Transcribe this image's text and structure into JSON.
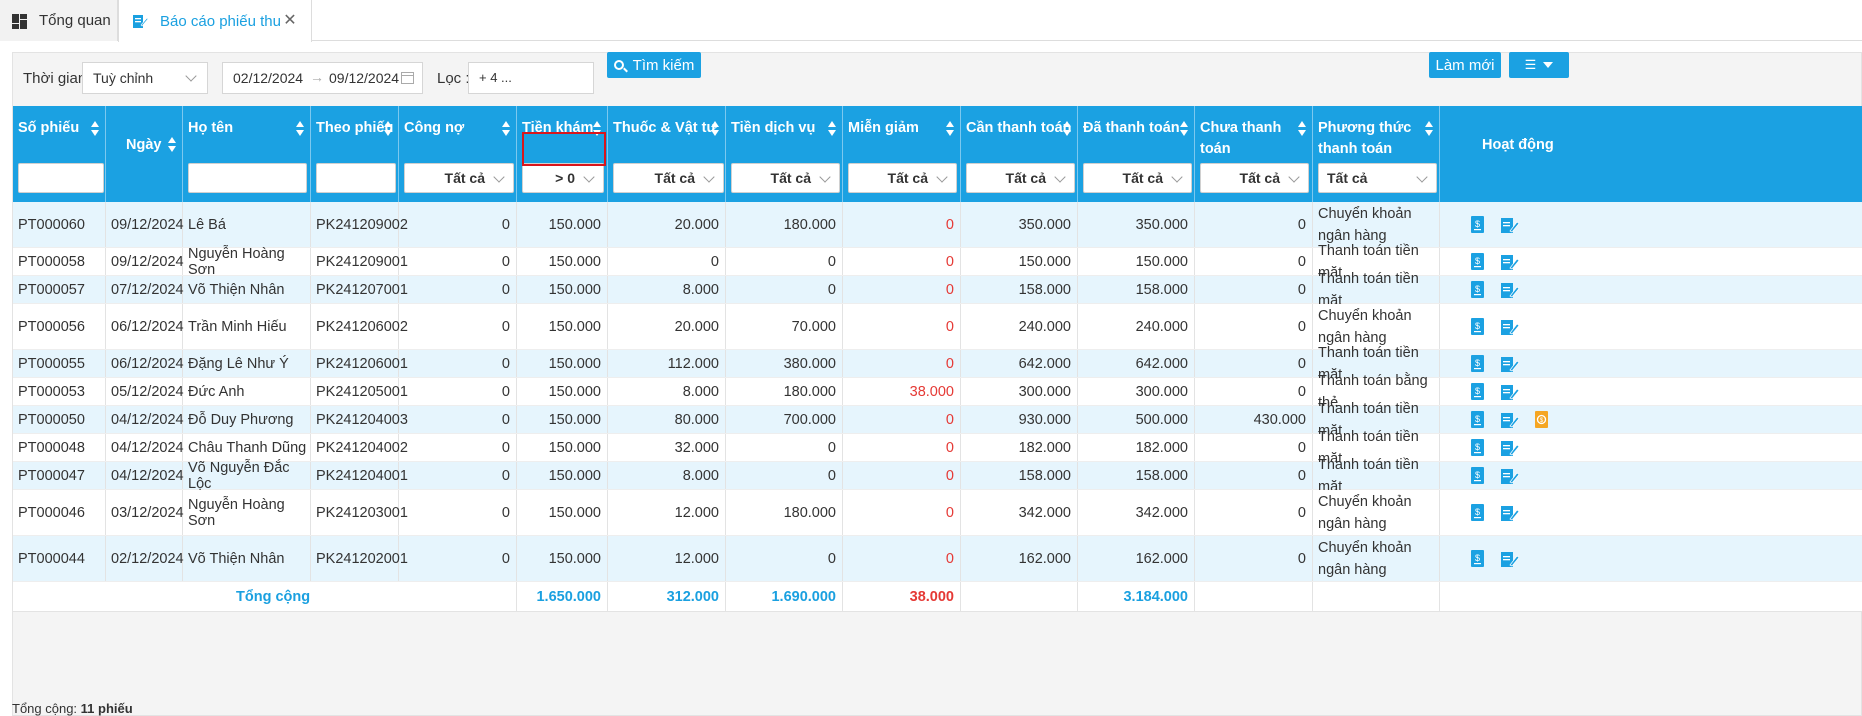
{
  "tabs": [
    {
      "label": "Tổng quan",
      "icon": "dashboard-icon"
    },
    {
      "label": "Báo cáo phiếu thu",
      "icon": "edit-document-icon"
    }
  ],
  "filters": {
    "time_label": "Thời gian :",
    "time_mode": "Tuỳ chỉnh",
    "date_from": "02/12/2024",
    "date_to": "09/12/2024",
    "filter_label": "Lọc :",
    "filter_chip": "+ 4 ...",
    "search_button": "Tìm kiếm",
    "refresh_button": "Làm mới"
  },
  "columns": [
    {
      "label": "Số phiếu",
      "filter": ""
    },
    {
      "label": "Ngày",
      "filter": null
    },
    {
      "label": "Họ tên",
      "filter": ""
    },
    {
      "label": "Theo phiếu",
      "filter": ""
    },
    {
      "label": "Công nợ",
      "filter": "Tất cả"
    },
    {
      "label": "Tiền khám",
      "filter": "> 0"
    },
    {
      "label": "Thuốc & Vật tư",
      "filter": "Tất cả"
    },
    {
      "label": "Tiền dịch vụ",
      "filter": "Tất cả"
    },
    {
      "label": "Miễn giảm",
      "filter": "Tất cả"
    },
    {
      "label": "Cần thanh toán",
      "filter": "Tất cả"
    },
    {
      "label": "Đã thanh toán",
      "filter": "Tất cả"
    },
    {
      "label": "Chưa thanh toán",
      "filter": "Tất cả"
    },
    {
      "label": "Phương thức thanh toán",
      "filter": "Tất cả"
    },
    {
      "label": "Hoạt động",
      "filter": null
    }
  ],
  "rows": [
    {
      "so": "PT000060",
      "ngay": "09/12/2024",
      "ten": "Lê Bá",
      "phieu": "PK241209002",
      "congno": "0",
      "kham": "150.000",
      "thuoc": "20.000",
      "dichvu": "180.000",
      "mien": "0",
      "can": "350.000",
      "da": "350.000",
      "chua": "0",
      "pt": "Chuyển khoản ngân hàng"
    },
    {
      "so": "PT000058",
      "ngay": "09/12/2024",
      "ten": "Nguyễn Hoàng Sơn",
      "phieu": "PK241209001",
      "congno": "0",
      "kham": "150.000",
      "thuoc": "0",
      "dichvu": "0",
      "mien": "0",
      "can": "150.000",
      "da": "150.000",
      "chua": "0",
      "pt": "Thanh toán tiền mặt"
    },
    {
      "so": "PT000057",
      "ngay": "07/12/2024",
      "ten": "Võ Thiện Nhân",
      "phieu": "PK241207001",
      "congno": "0",
      "kham": "150.000",
      "thuoc": "8.000",
      "dichvu": "0",
      "mien": "0",
      "can": "158.000",
      "da": "158.000",
      "chua": "0",
      "pt": "Thanh toán tiền mặt"
    },
    {
      "so": "PT000056",
      "ngay": "06/12/2024",
      "ten": "Trần Minh Hiếu",
      "phieu": "PK241206002",
      "congno": "0",
      "kham": "150.000",
      "thuoc": "20.000",
      "dichvu": "70.000",
      "mien": "0",
      "can": "240.000",
      "da": "240.000",
      "chua": "0",
      "pt": "Chuyển khoản ngân hàng"
    },
    {
      "so": "PT000055",
      "ngay": "06/12/2024",
      "ten": "Đặng Lê Như Ý",
      "phieu": "PK241206001",
      "congno": "0",
      "kham": "150.000",
      "thuoc": "112.000",
      "dichvu": "380.000",
      "mien": "0",
      "can": "642.000",
      "da": "642.000",
      "chua": "0",
      "pt": "Thanh toán tiền mặt"
    },
    {
      "so": "PT000053",
      "ngay": "05/12/2024",
      "ten": "Đức Anh",
      "phieu": "PK241205001",
      "congno": "0",
      "kham": "150.000",
      "thuoc": "8.000",
      "dichvu": "180.000",
      "mien": "38.000",
      "can": "300.000",
      "da": "300.000",
      "chua": "0",
      "pt": "Thanh toán bằng thẻ"
    },
    {
      "so": "PT000050",
      "ngay": "04/12/2024",
      "ten": "Đỗ Duy Phương",
      "phieu": "PK241204003",
      "congno": "0",
      "kham": "150.000",
      "thuoc": "80.000",
      "dichvu": "700.000",
      "mien": "0",
      "can": "930.000",
      "da": "500.000",
      "chua": "430.000",
      "pt": "Thanh toán tiền mặt"
    },
    {
      "so": "PT000048",
      "ngay": "04/12/2024",
      "ten": "Châu Thanh Dũng",
      "phieu": "PK241204002",
      "congno": "0",
      "kham": "150.000",
      "thuoc": "32.000",
      "dichvu": "0",
      "mien": "0",
      "can": "182.000",
      "da": "182.000",
      "chua": "0",
      "pt": "Thanh toán tiền mặt"
    },
    {
      "so": "PT000047",
      "ngay": "04/12/2024",
      "ten": "Võ Nguyễn Đắc Lộc",
      "phieu": "PK241204001",
      "congno": "0",
      "kham": "150.000",
      "thuoc": "8.000",
      "dichvu": "0",
      "mien": "0",
      "can": "158.000",
      "da": "158.000",
      "chua": "0",
      "pt": "Thanh toán tiền mặt"
    },
    {
      "so": "PT000046",
      "ngay": "03/12/2024",
      "ten": "Nguyễn Hoàng Sơn",
      "phieu": "PK241203001",
      "congno": "0",
      "kham": "150.000",
      "thuoc": "12.000",
      "dichvu": "180.000",
      "mien": "0",
      "can": "342.000",
      "da": "342.000",
      "chua": "0",
      "pt": "Chuyển khoản ngân hàng"
    },
    {
      "so": "PT000044",
      "ngay": "02/12/2024",
      "ten": "Võ Thiện Nhân",
      "phieu": "PK241202001",
      "congno": "0",
      "kham": "150.000",
      "thuoc": "12.000",
      "dichvu": "0",
      "mien": "0",
      "can": "162.000",
      "da": "162.000",
      "chua": "0",
      "pt": "Chuyển khoản ngân hàng"
    }
  ],
  "footer": {
    "label": "Tổng cộng",
    "kham": "1.650.000",
    "thuoc": "312.000",
    "dichvu": "1.690.000",
    "mien": "38.000",
    "da": "3.184.000"
  },
  "summary_prefix": "Tổng cộng:",
  "summary_count": "11 phiếu",
  "colors": {
    "accent": "#1ba1e2",
    "row_alt": "#e6f5fd",
    "negative": "#e53935",
    "warning_icon": "#f5a623"
  }
}
